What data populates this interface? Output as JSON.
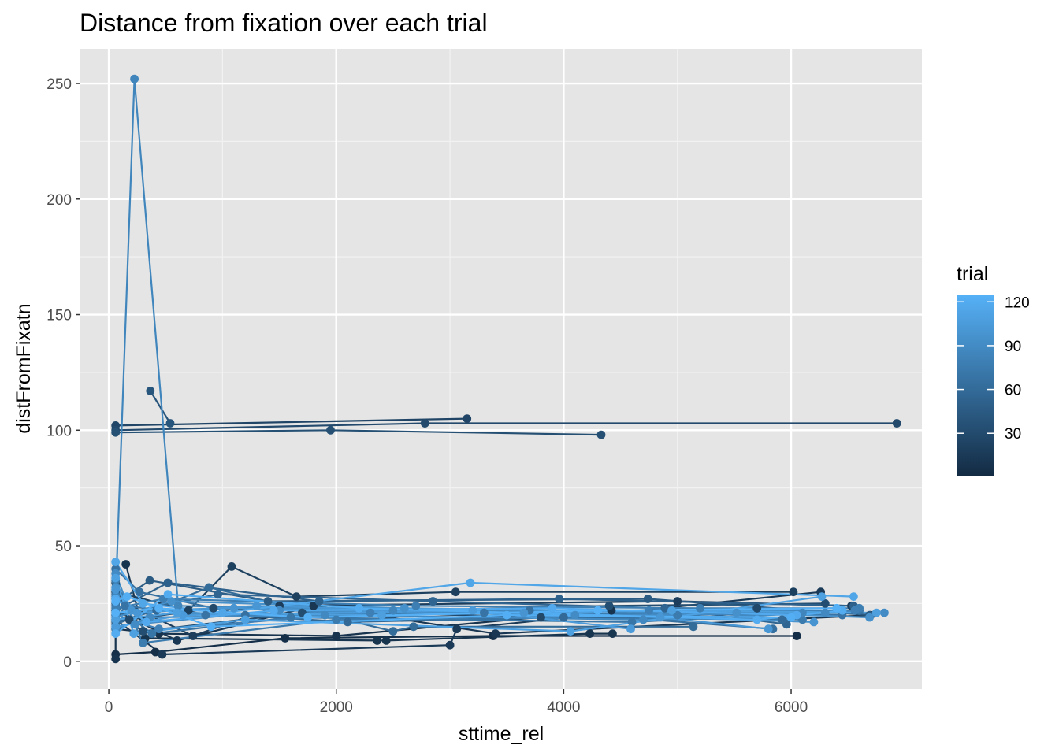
{
  "chart_data": {
    "type": "line",
    "title": "Distance from fixation over each trial",
    "xlabel": "sttime_rel",
    "ylabel": "distFromFixatn",
    "xlim": [
      -250,
      7150
    ],
    "ylim": [
      -12,
      265
    ],
    "x_ticks": [
      0,
      2000,
      4000,
      6000
    ],
    "x_tick_labels": [
      "0",
      "2000",
      "4000",
      "6000"
    ],
    "y_ticks": [
      0,
      50,
      100,
      150,
      200,
      250
    ],
    "y_tick_labels": [
      "0",
      "50",
      "100",
      "150",
      "200",
      "250"
    ],
    "grid": true,
    "legend": {
      "title": "trial",
      "type": "colorbar",
      "placement": "right",
      "range": [
        1,
        125
      ],
      "breaks": [
        30,
        60,
        90,
        120
      ],
      "break_labels": [
        "30",
        "60",
        "90",
        "120"
      ],
      "low_color": "#132B43",
      "high_color": "#56B1F7"
    },
    "colors": {
      "panel_background": "#e5e5e5",
      "grid_major": "#ffffff",
      "grid_minor": "#f2f2f2",
      "tick_text": "#4d4d4d"
    },
    "series": [
      {
        "trial": 85,
        "points": [
          [
            60,
            28
          ],
          [
            225,
            252
          ],
          [
            610,
            24
          ],
          [
            2500,
            22
          ],
          [
            6100,
            21
          ]
        ]
      },
      {
        "trial": 25,
        "points": [
          [
            60,
            102
          ],
          [
            3150,
            105
          ]
        ]
      },
      {
        "trial": 30,
        "points": [
          [
            60,
            100
          ],
          [
            2780,
            103
          ],
          [
            6930,
            103
          ]
        ]
      },
      {
        "trial": 35,
        "points": [
          [
            60,
            99
          ],
          [
            1950,
            100
          ],
          [
            4330,
            98
          ]
        ]
      },
      {
        "trial": 40,
        "points": [
          [
            365,
            117
          ],
          [
            540,
            103
          ]
        ]
      },
      {
        "trial": 20,
        "points": [
          [
            60,
            30
          ],
          [
            700,
            22
          ],
          [
            1080,
            41
          ],
          [
            1650,
            28
          ],
          [
            3050,
            30
          ],
          [
            6020,
            30
          ]
        ]
      },
      {
        "trial": 5,
        "points": [
          [
            60,
            3
          ],
          [
            410,
            4
          ],
          [
            1550,
            10
          ],
          [
            3380,
            11
          ],
          [
            6050,
            11
          ]
        ]
      },
      {
        "trial": 10,
        "points": [
          [
            150,
            42
          ],
          [
            320,
            10
          ],
          [
            2360,
            9
          ],
          [
            2440,
            9
          ],
          [
            4230,
            12
          ],
          [
            4430,
            12
          ]
        ]
      },
      {
        "trial": 15,
        "points": [
          [
            60,
            18
          ],
          [
            470,
            3
          ],
          [
            3000,
            7
          ],
          [
            3060,
            14
          ],
          [
            6260,
            30
          ]
        ]
      },
      {
        "trial": 45,
        "points": [
          [
            60,
            25
          ],
          [
            360,
            35
          ],
          [
            1400,
            26
          ],
          [
            4740,
            27
          ],
          [
            6690,
            20
          ]
        ]
      },
      {
        "trial": 50,
        "points": [
          [
            60,
            22
          ],
          [
            520,
            34
          ],
          [
            1850,
            26
          ],
          [
            3960,
            27
          ],
          [
            6550,
            24
          ]
        ]
      },
      {
        "trial": 55,
        "points": [
          [
            60,
            20
          ],
          [
            960,
            29
          ],
          [
            2850,
            26
          ],
          [
            4890,
            23
          ],
          [
            5960,
            16
          ]
        ]
      },
      {
        "trial": 60,
        "points": [
          [
            60,
            16
          ],
          [
            880,
            32
          ],
          [
            2500,
            13
          ],
          [
            2680,
            15
          ],
          [
            5140,
            15
          ]
        ]
      },
      {
        "trial": 65,
        "points": [
          [
            60,
            40
          ],
          [
            270,
            30
          ],
          [
            1200,
            20
          ],
          [
            3700,
            22
          ],
          [
            5840,
            14
          ]
        ]
      },
      {
        "trial": 70,
        "points": [
          [
            60,
            24
          ],
          [
            380,
            12
          ],
          [
            1600,
            19
          ],
          [
            4600,
            17
          ],
          [
            6600,
            22
          ]
        ]
      },
      {
        "trial": 75,
        "points": [
          [
            60,
            35
          ],
          [
            300,
            8
          ],
          [
            2000,
            18
          ],
          [
            5000,
            20
          ],
          [
            6100,
            18
          ]
        ]
      },
      {
        "trial": 80,
        "points": [
          [
            60,
            20
          ],
          [
            440,
            14
          ],
          [
            2300,
            21
          ],
          [
            4750,
            22
          ],
          [
            6560,
            22
          ]
        ]
      },
      {
        "trial": 90,
        "points": [
          [
            60,
            38
          ],
          [
            230,
            16
          ],
          [
            1500,
            22
          ],
          [
            4100,
            20
          ],
          [
            6820,
            21
          ]
        ]
      },
      {
        "trial": 95,
        "points": [
          [
            60,
            19
          ],
          [
            550,
            26
          ],
          [
            2600,
            23
          ],
          [
            5520,
            21
          ],
          [
            6690,
            19
          ]
        ]
      },
      {
        "trial": 100,
        "points": [
          [
            60,
            31
          ],
          [
            250,
            21
          ],
          [
            1300,
            24
          ],
          [
            4850,
            19
          ],
          [
            5800,
            14
          ]
        ]
      },
      {
        "trial": 105,
        "points": [
          [
            60,
            15
          ],
          [
            650,
            20
          ],
          [
            3200,
            22
          ],
          [
            4590,
            14
          ]
        ]
      },
      {
        "trial": 110,
        "points": [
          [
            60,
            36
          ],
          [
            220,
            12
          ],
          [
            1200,
            18
          ],
          [
            4060,
            13
          ],
          [
            6270,
            28
          ]
        ]
      },
      {
        "trial": 115,
        "points": [
          [
            60,
            43
          ],
          [
            300,
            25
          ],
          [
            1000,
            21
          ],
          [
            3180,
            34
          ],
          [
            6550,
            28
          ]
        ]
      },
      {
        "trial": 120,
        "points": [
          [
            60,
            12
          ],
          [
            520,
            29
          ],
          [
            2200,
            23
          ],
          [
            5700,
            18
          ],
          [
            6450,
            22
          ]
        ]
      },
      {
        "trial": 122,
        "points": [
          [
            60,
            26
          ],
          [
            160,
            28
          ],
          [
            900,
            15
          ],
          [
            3500,
            20
          ],
          [
            6000,
            19
          ]
        ]
      },
      {
        "trial": 8,
        "points": [
          [
            60,
            1
          ],
          [
            60,
            14
          ],
          [
            440,
            12
          ],
          [
            2000,
            11
          ],
          [
            4420,
            22
          ]
        ]
      },
      {
        "trial": 12,
        "points": [
          [
            60,
            22
          ],
          [
            600,
            9
          ],
          [
            1800,
            24
          ],
          [
            3400,
            12
          ],
          [
            6700,
            20
          ]
        ]
      },
      {
        "trial": 18,
        "points": [
          [
            60,
            27
          ],
          [
            740,
            11
          ],
          [
            1500,
            24
          ],
          [
            5000,
            26
          ],
          [
            6530,
            24
          ]
        ]
      },
      {
        "trial": 28,
        "points": [
          [
            60,
            34
          ],
          [
            180,
            18
          ],
          [
            920,
            23
          ],
          [
            3800,
            19
          ],
          [
            5700,
            23
          ]
        ]
      },
      {
        "trial": 33,
        "points": [
          [
            60,
            21
          ],
          [
            300,
            13
          ],
          [
            1700,
            21
          ],
          [
            4400,
            24
          ],
          [
            6300,
            25
          ]
        ]
      },
      {
        "trial": 58,
        "points": [
          [
            60,
            17
          ],
          [
            420,
            22
          ],
          [
            2100,
            17
          ],
          [
            4000,
            19
          ],
          [
            5920,
            18
          ]
        ]
      },
      {
        "trial": 68,
        "points": [
          [
            60,
            29
          ],
          [
            140,
            24
          ],
          [
            850,
            20
          ],
          [
            3300,
            21
          ],
          [
            6450,
            20
          ]
        ]
      },
      {
        "trial": 78,
        "points": [
          [
            60,
            23
          ],
          [
            480,
            27
          ],
          [
            2700,
            24
          ],
          [
            5200,
            23
          ],
          [
            6600,
            23
          ]
        ]
      },
      {
        "trial": 88,
        "points": [
          [
            60,
            14
          ],
          [
            360,
            19
          ],
          [
            1900,
            20
          ],
          [
            4700,
            18
          ],
          [
            6300,
            21
          ]
        ]
      },
      {
        "trial": 98,
        "points": [
          [
            60,
            32
          ],
          [
            200,
            22
          ],
          [
            1100,
            23
          ],
          [
            3650,
            21
          ],
          [
            6200,
            17
          ]
        ]
      },
      {
        "trial": 108,
        "points": [
          [
            60,
            18
          ],
          [
            600,
            21
          ],
          [
            2400,
            20
          ],
          [
            4950,
            22
          ],
          [
            6750,
            21
          ]
        ]
      },
      {
        "trial": 118,
        "points": [
          [
            60,
            27
          ],
          [
            330,
            17
          ],
          [
            1450,
            22
          ],
          [
            3900,
            23
          ],
          [
            6050,
            20
          ]
        ]
      },
      {
        "trial": 124,
        "points": [
          [
            60,
            21
          ],
          [
            440,
            23
          ],
          [
            1750,
            19
          ],
          [
            4300,
            22
          ],
          [
            6400,
            23
          ]
        ]
      }
    ]
  }
}
